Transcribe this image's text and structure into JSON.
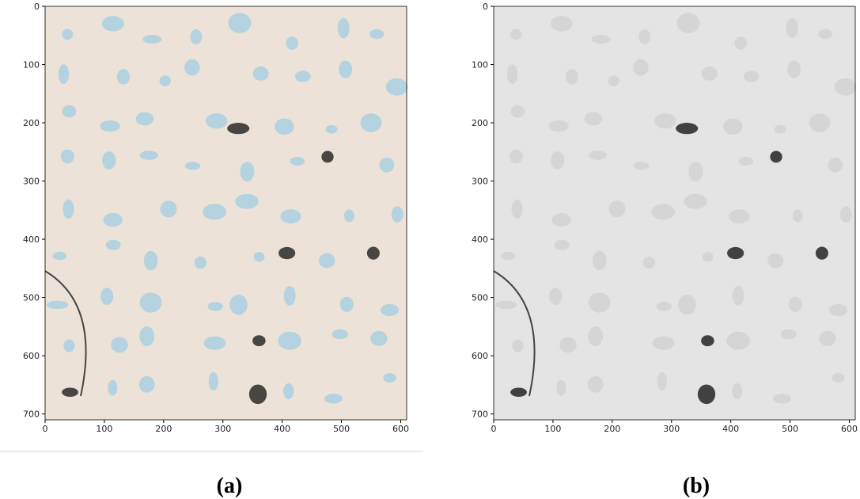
{
  "chart_data": [
    {
      "type": "image",
      "caption": "(a)",
      "xlim": [
        0,
        610
      ],
      "ylim": [
        710,
        0
      ],
      "xticks": [
        0,
        100,
        200,
        300,
        400,
        500,
        600
      ],
      "yticks": [
        0,
        100,
        200,
        300,
        400,
        500,
        600,
        700
      ]
    },
    {
      "type": "image",
      "caption": "(b)",
      "xlim": [
        0,
        610
      ],
      "ylim": [
        710,
        0
      ],
      "xticks": [
        0,
        100,
        200,
        300,
        400,
        500,
        600
      ],
      "yticks": [
        0,
        100,
        200,
        300,
        400,
        500,
        600,
        700
      ]
    }
  ]
}
